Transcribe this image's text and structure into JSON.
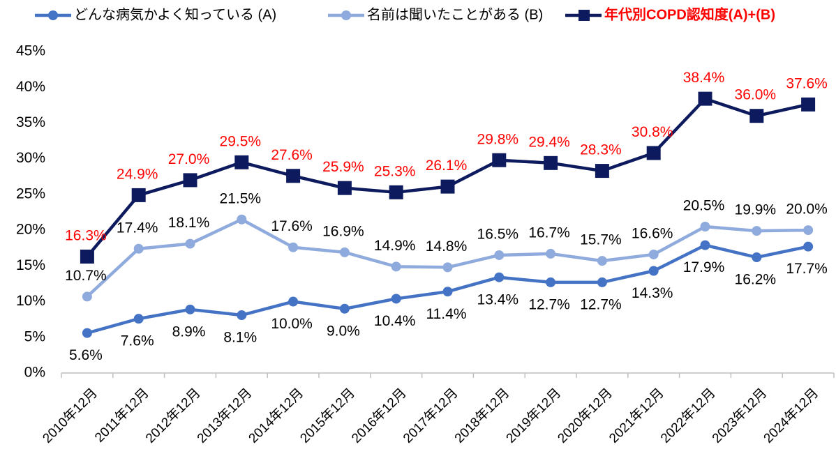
{
  "chart_data": {
    "type": "line",
    "categories": [
      "2010年12月",
      "2011年12月",
      "2012年12月",
      "2013年12月",
      "2014年12月",
      "2015年12月",
      "2016年12月",
      "2017年12月",
      "2018年12月",
      "2019年12月",
      "2020年12月",
      "2021年12月",
      "2022年12月",
      "2023年12月",
      "2024年12月"
    ],
    "series": [
      {
        "name": "どんな病気かよく知っている (A)",
        "color": "#4472c4",
        "marker": "circle",
        "label_color": "#000000",
        "label_position": "below",
        "values": [
          5.6,
          7.6,
          8.9,
          8.1,
          10.0,
          9.0,
          10.4,
          11.4,
          13.4,
          12.7,
          12.7,
          14.3,
          17.9,
          16.2,
          17.7
        ],
        "value_labels": [
          "5.6%",
          "7.6%",
          "8.9%",
          "8.1%",
          "10.0%",
          "9.0%",
          "10.4%",
          "11.4%",
          "13.4%",
          "12.7%",
          "12.7%",
          "14.3%",
          "17.9%",
          "16.2%",
          "17.7%"
        ]
      },
      {
        "name": "名前は聞いたことがある (B)",
        "color": "#8faadc",
        "marker": "circle",
        "label_color": "#000000",
        "label_position": "above",
        "values": [
          10.7,
          17.4,
          18.1,
          21.5,
          17.6,
          16.9,
          14.9,
          14.8,
          16.5,
          16.7,
          15.7,
          16.6,
          20.5,
          19.9,
          20.0
        ],
        "value_labels": [
          "10.7%",
          "17.4%",
          "18.1%",
          "21.5%",
          "17.6%",
          "16.9%",
          "14.9%",
          "14.8%",
          "16.5%",
          "16.7%",
          "15.7%",
          "16.6%",
          "20.5%",
          "19.9%",
          "20.0%"
        ]
      },
      {
        "name": "年代別COPD認知度(A)+(B)",
        "color": "#0d1b5e",
        "marker": "square",
        "label_color": "#ff0000",
        "label_position": "above",
        "legend_bold": true,
        "legend_color": "#ff0000",
        "values": [
          16.3,
          24.9,
          27.0,
          29.5,
          27.6,
          25.9,
          25.3,
          26.1,
          29.8,
          29.4,
          28.3,
          30.8,
          38.4,
          36.0,
          37.6
        ],
        "value_labels": [
          "16.3%",
          "24.9%",
          "27.0%",
          "29.5%",
          "27.6%",
          "25.9%",
          "25.3%",
          "26.1%",
          "29.8%",
          "29.4%",
          "28.3%",
          "30.8%",
          "38.4%",
          "36.0%",
          "37.6%"
        ]
      }
    ],
    "ylim": [
      0,
      45
    ],
    "yticks": [
      {
        "value": 0,
        "label": "0%"
      },
      {
        "value": 5,
        "label": "5%"
      },
      {
        "value": 10,
        "label": "10%"
      },
      {
        "value": 15,
        "label": "15%"
      },
      {
        "value": 20,
        "label": "20%"
      },
      {
        "value": 25,
        "label": "25%"
      },
      {
        "value": 30,
        "label": "30%"
      },
      {
        "value": 35,
        "label": "35%"
      },
      {
        "value": 40,
        "label": "40%"
      },
      {
        "value": 45,
        "label": "45%"
      }
    ],
    "grid": false,
    "legend": "top"
  }
}
